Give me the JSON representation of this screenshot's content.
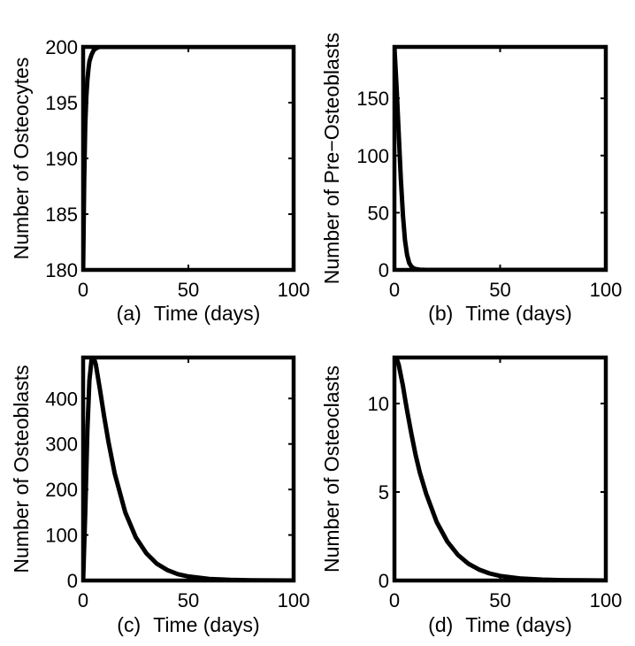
{
  "chart_data": [
    {
      "type": "line",
      "panel": "(a)",
      "xlabel": "Time (days)",
      "ylabel": "Number of Osteocytes",
      "xlim": [
        0,
        100
      ],
      "ylim": [
        180,
        200
      ],
      "xticks": [
        "0",
        "50",
        "100"
      ],
      "yticks": [
        "180",
        "185",
        "190",
        "195",
        "200"
      ],
      "x": [
        0,
        0.5,
        1,
        1.5,
        2,
        2.5,
        3,
        4,
        5,
        6,
        7,
        8,
        10,
        15,
        20,
        30,
        40,
        50,
        60,
        70,
        80,
        90,
        100
      ],
      "series": [
        {
          "values": [
            180,
            188,
            193,
            195.5,
            197,
            198,
            198.7,
            199.3,
            199.7,
            199.85,
            199.95,
            200,
            200,
            200,
            200,
            200,
            200,
            200,
            200,
            200,
            200,
            200,
            200
          ]
        }
      ]
    },
    {
      "type": "line",
      "panel": "(b)",
      "xlabel": "Time (days)",
      "ylabel": "Number of Pre−Osteoblasts",
      "xlim": [
        0,
        100
      ],
      "ylim": [
        0,
        195
      ],
      "xticks": [
        "0",
        "50",
        "100"
      ],
      "yticks": [
        "0",
        "50",
        "100",
        "150"
      ],
      "x": [
        0,
        1,
        2,
        3,
        4,
        5,
        6,
        7,
        8,
        9,
        10,
        12,
        15,
        20,
        30,
        40,
        50,
        60,
        70,
        80,
        90,
        100
      ],
      "series": [
        {
          "values": [
            195,
            160,
            120,
            80,
            48,
            26,
            13,
            6,
            3,
            1.5,
            0.8,
            0.2,
            0,
            0,
            0,
            0,
            0,
            0,
            0,
            0,
            0,
            0
          ]
        }
      ]
    },
    {
      "type": "line",
      "panel": "(c)",
      "xlabel": "Time (days)",
      "ylabel": "Number of Osteoblasts",
      "xlim": [
        0,
        100
      ],
      "ylim": [
        0,
        490
      ],
      "xticks": [
        "0",
        "50",
        "100"
      ],
      "yticks": [
        "0",
        "100",
        "200",
        "300",
        "400"
      ],
      "x": [
        0,
        1,
        2,
        3,
        4,
        5,
        6,
        8,
        10,
        12,
        15,
        20,
        25,
        30,
        35,
        40,
        45,
        50,
        60,
        70,
        80,
        90,
        100
      ],
      "series": [
        {
          "values": [
            0,
            150,
            330,
            440,
            485,
            490,
            475,
            420,
            360,
            305,
            235,
            150,
            95,
            60,
            37,
            23,
            14,
            9,
            3.5,
            1.3,
            0.5,
            0.2,
            0
          ]
        }
      ]
    },
    {
      "type": "line",
      "panel": "(d)",
      "xlabel": "Time (days)",
      "ylabel": "Number of Osteoclasts",
      "xlim": [
        0,
        100
      ],
      "ylim": [
        0,
        12.6
      ],
      "xticks": [
        "0",
        "50",
        "100"
      ],
      "yticks": [
        "0",
        "5",
        "10"
      ],
      "x": [
        0,
        1,
        2,
        3,
        4,
        5,
        6,
        8,
        10,
        12,
        15,
        20,
        25,
        30,
        35,
        40,
        45,
        50,
        60,
        70,
        80,
        90,
        100
      ],
      "series": [
        {
          "values": [
            12.6,
            12.55,
            12.2,
            11.6,
            11.0,
            10.3,
            9.6,
            8.3,
            7.1,
            6.1,
            4.9,
            3.3,
            2.2,
            1.45,
            0.95,
            0.62,
            0.4,
            0.26,
            0.11,
            0.05,
            0.02,
            0.01,
            0
          ]
        }
      ]
    }
  ],
  "colors": {
    "line": "#000000",
    "frame": "#000000",
    "background": "#ffffff"
  }
}
